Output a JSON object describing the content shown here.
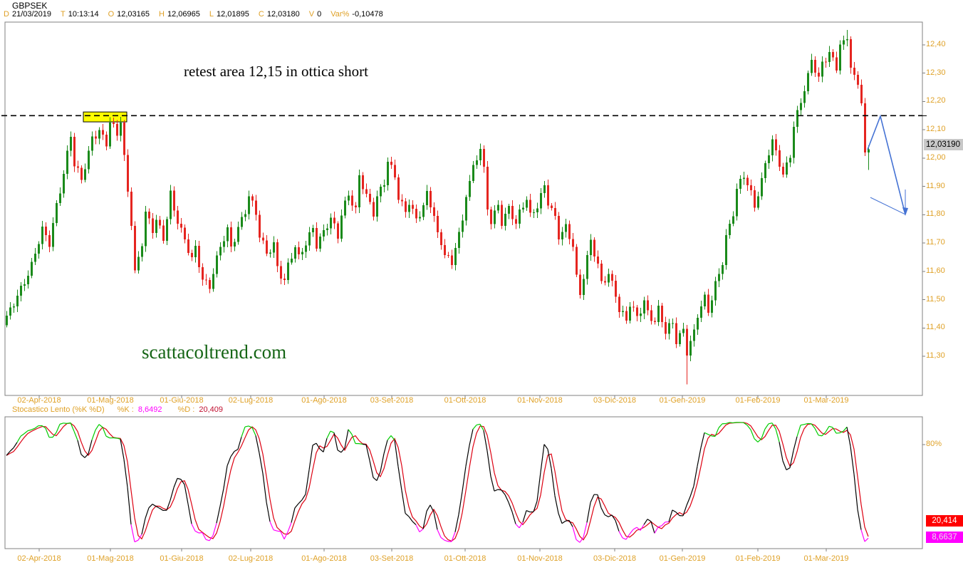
{
  "colors": {
    "accent_orange": "#DFA127",
    "candle_up": "#1A8A1A",
    "candle_down": "#E52520",
    "k_line": "#000000",
    "k_overbought": "#00CC00",
    "k_oversold": "#FF00FF",
    "d_line": "#DD0011",
    "watermark_green": "#156515",
    "arrow_blue": "#4472D4",
    "resistance_box_fill": "#FFFF00",
    "panel_border": "#808080",
    "last_price_badge_bg": "#C8C8C8"
  },
  "header": {
    "symbol": "GBPSEK",
    "fields": [
      {
        "label": "D",
        "value": "21/03/2019"
      },
      {
        "label": "T",
        "value": "10:13:14"
      },
      {
        "label": "O",
        "value": "12,03165"
      },
      {
        "label": "H",
        "value": "12,06965"
      },
      {
        "label": "L",
        "value": "12,01895"
      },
      {
        "label": "C",
        "value": "12,03180"
      },
      {
        "label": "V",
        "value": "0"
      },
      {
        "label": "Var%",
        "value": "-0,10478"
      }
    ]
  },
  "annotation": "retest area 12,15 in ottica short",
  "watermark": "scattacoltrend.com",
  "stochastic_panel": {
    "title": "Stocastico Lento (%K %D)",
    "k_label": "%K :",
    "k_value": "8,6492",
    "d_label": "%D :",
    "d_value": "20,409",
    "right_axis_label": "80%",
    "d_badge": "20,414",
    "k_badge": "8,6637"
  },
  "chart_data": {
    "type": "candlestick",
    "title": "GBPSEK daily with slow stochastic",
    "symbol": "GBPSEK",
    "timeframe": "daily",
    "candle_count": 243,
    "ylim": [
      11.22,
      12.45
    ],
    "y_tick_labels": [
      "12,40",
      "12,30",
      "12,20",
      "12,10",
      "12,00",
      "11,90",
      "11,80",
      "11,70",
      "11,60",
      "11,50",
      "11,40",
      "11,30"
    ],
    "y_tick_values": [
      12.4,
      12.3,
      12.2,
      12.1,
      12.0,
      11.9,
      11.8,
      11.7,
      11.6,
      11.5,
      11.4,
      11.3
    ],
    "x_tick_labels": [
      "02-Apr-2018",
      "01-Mag-2018",
      "01-Giu-2018",
      "02-Lug-2018",
      "01-Ago-2018",
      "03-Set-2018",
      "01-Ott-2018",
      "01-Nov-2018",
      "03-Dic-2018",
      "01-Gen-2019",
      "01-Feb-2019",
      "01-Mar-2019"
    ],
    "last": {
      "open": 12.03165,
      "high": 12.06965,
      "low": 12.01895,
      "close": 12.0318,
      "volume": 0,
      "var_pct": -0.10478,
      "price_label": "12,03190"
    },
    "resistance_level": 12.15,
    "highlight_box": {
      "start_index": 21.6,
      "end_index": 33.8,
      "price_low": 12.128,
      "price_high": 12.163
    },
    "projection_arrow": {
      "polyline": [
        [
          241.8,
          12.03
        ],
        [
          245.4,
          12.148
        ],
        [
          252.4,
          11.801
        ]
      ],
      "barbs": [
        [
          [
            242.6,
            11.861
          ],
          [
            252.4,
            11.801
          ]
        ],
        [
          [
            252.4,
            11.889
          ],
          [
            252.4,
            11.801
          ]
        ]
      ]
    },
    "close_keyframes": [
      [
        0,
        11.43
      ],
      [
        3,
        11.52
      ],
      [
        7,
        11.62
      ],
      [
        10,
        11.74
      ],
      [
        12,
        11.7
      ],
      [
        14,
        11.84
      ],
      [
        16,
        11.95
      ],
      [
        18,
        12.08
      ],
      [
        19,
        11.97
      ],
      [
        21,
        11.92
      ],
      [
        23,
        12.02
      ],
      [
        24,
        12.08
      ],
      [
        26,
        12.1
      ],
      [
        28,
        12.05
      ],
      [
        29,
        12.12
      ],
      [
        31,
        12.08
      ],
      [
        32,
        12.13
      ],
      [
        33,
        12.0
      ],
      [
        35,
        11.78
      ],
      [
        36,
        11.6
      ],
      [
        38,
        11.7
      ],
      [
        39,
        11.8
      ],
      [
        41,
        11.74
      ],
      [
        42,
        11.78
      ],
      [
        44,
        11.72
      ],
      [
        46,
        11.88
      ],
      [
        47,
        11.82
      ],
      [
        49,
        11.74
      ],
      [
        50,
        11.7
      ],
      [
        52,
        11.64
      ],
      [
        53,
        11.68
      ],
      [
        55,
        11.58
      ],
      [
        57,
        11.55
      ],
      [
        58,
        11.6
      ],
      [
        60,
        11.68
      ],
      [
        62,
        11.74
      ],
      [
        63,
        11.68
      ],
      [
        65,
        11.76
      ],
      [
        67,
        11.82
      ],
      [
        68,
        11.87
      ],
      [
        70,
        11.8
      ],
      [
        71,
        11.72
      ],
      [
        73,
        11.66
      ],
      [
        75,
        11.7
      ],
      [
        76,
        11.62
      ],
      [
        78,
        11.57
      ],
      [
        79,
        11.62
      ],
      [
        81,
        11.68
      ],
      [
        82,
        11.64
      ],
      [
        84,
        11.7
      ],
      [
        86,
        11.76
      ],
      [
        87,
        11.7
      ],
      [
        89,
        11.74
      ],
      [
        91,
        11.78
      ],
      [
        93,
        11.72
      ],
      [
        94,
        11.8
      ],
      [
        96,
        11.88
      ],
      [
        98,
        11.82
      ],
      [
        99,
        11.94
      ],
      [
        101,
        11.86
      ],
      [
        103,
        11.8
      ],
      [
        104,
        11.86
      ],
      [
        106,
        11.92
      ],
      [
        107,
        12.0
      ],
      [
        109,
        11.94
      ],
      [
        110,
        11.86
      ],
      [
        112,
        11.8
      ],
      [
        113,
        11.84
      ],
      [
        115,
        11.78
      ],
      [
        117,
        11.84
      ],
      [
        118,
        11.88
      ],
      [
        120,
        11.8
      ],
      [
        121,
        11.72
      ],
      [
        123,
        11.66
      ],
      [
        125,
        11.62
      ],
      [
        126,
        11.7
      ],
      [
        128,
        11.78
      ],
      [
        129,
        11.88
      ],
      [
        131,
        11.96
      ],
      [
        133,
        12.03
      ],
      [
        134,
        11.95
      ],
      [
        135,
        11.82
      ],
      [
        136,
        11.78
      ],
      [
        138,
        11.84
      ],
      [
        139,
        11.78
      ],
      [
        141,
        11.82
      ],
      [
        143,
        11.76
      ],
      [
        144,
        11.8
      ],
      [
        146,
        11.86
      ],
      [
        147,
        11.8
      ],
      [
        149,
        11.84
      ],
      [
        151,
        11.9
      ],
      [
        152,
        11.84
      ],
      [
        154,
        11.78
      ],
      [
        155,
        11.72
      ],
      [
        157,
        11.76
      ],
      [
        159,
        11.7
      ],
      [
        160,
        11.58
      ],
      [
        161,
        11.52
      ],
      [
        163,
        11.64
      ],
      [
        164,
        11.7
      ],
      [
        166,
        11.62
      ],
      [
        167,
        11.56
      ],
      [
        169,
        11.6
      ],
      [
        171,
        11.52
      ],
      [
        172,
        11.46
      ],
      [
        174,
        11.42
      ],
      [
        175,
        11.48
      ],
      [
        177,
        11.44
      ],
      [
        179,
        11.5
      ],
      [
        180,
        11.46
      ],
      [
        182,
        11.42
      ],
      [
        183,
        11.46
      ],
      [
        185,
        11.38
      ],
      [
        187,
        11.42
      ],
      [
        188,
        11.36
      ],
      [
        190,
        11.4
      ],
      [
        191,
        11.32
      ],
      [
        193,
        11.38
      ],
      [
        194,
        11.44
      ],
      [
        196,
        11.5
      ],
      [
        197,
        11.46
      ],
      [
        199,
        11.56
      ],
      [
        201,
        11.64
      ],
      [
        202,
        11.72
      ],
      [
        204,
        11.8
      ],
      [
        205,
        11.88
      ],
      [
        207,
        11.94
      ],
      [
        209,
        11.88
      ],
      [
        210,
        11.84
      ],
      [
        212,
        11.92
      ],
      [
        213,
        11.98
      ],
      [
        215,
        12.05
      ],
      [
        217,
        11.98
      ],
      [
        218,
        11.94
      ],
      [
        220,
        12.02
      ],
      [
        221,
        12.12
      ],
      [
        223,
        12.2
      ],
      [
        225,
        12.28
      ],
      [
        226,
        12.34
      ],
      [
        228,
        12.28
      ],
      [
        229,
        12.34
      ],
      [
        231,
        12.38
      ],
      [
        233,
        12.32
      ],
      [
        234,
        12.4
      ],
      [
        236,
        12.42
      ],
      [
        237,
        12.32
      ],
      [
        239,
        12.26
      ],
      [
        240,
        12.2
      ],
      [
        241,
        12.02
      ],
      [
        242,
        12.032
      ]
    ],
    "stochastic": {
      "type": "slow",
      "k_period": 14,
      "k_smooth": 3,
      "d_period": 3,
      "overbought": 80,
      "oversold": 20,
      "current_k": 8.6492,
      "current_d": 20.409
    }
  }
}
